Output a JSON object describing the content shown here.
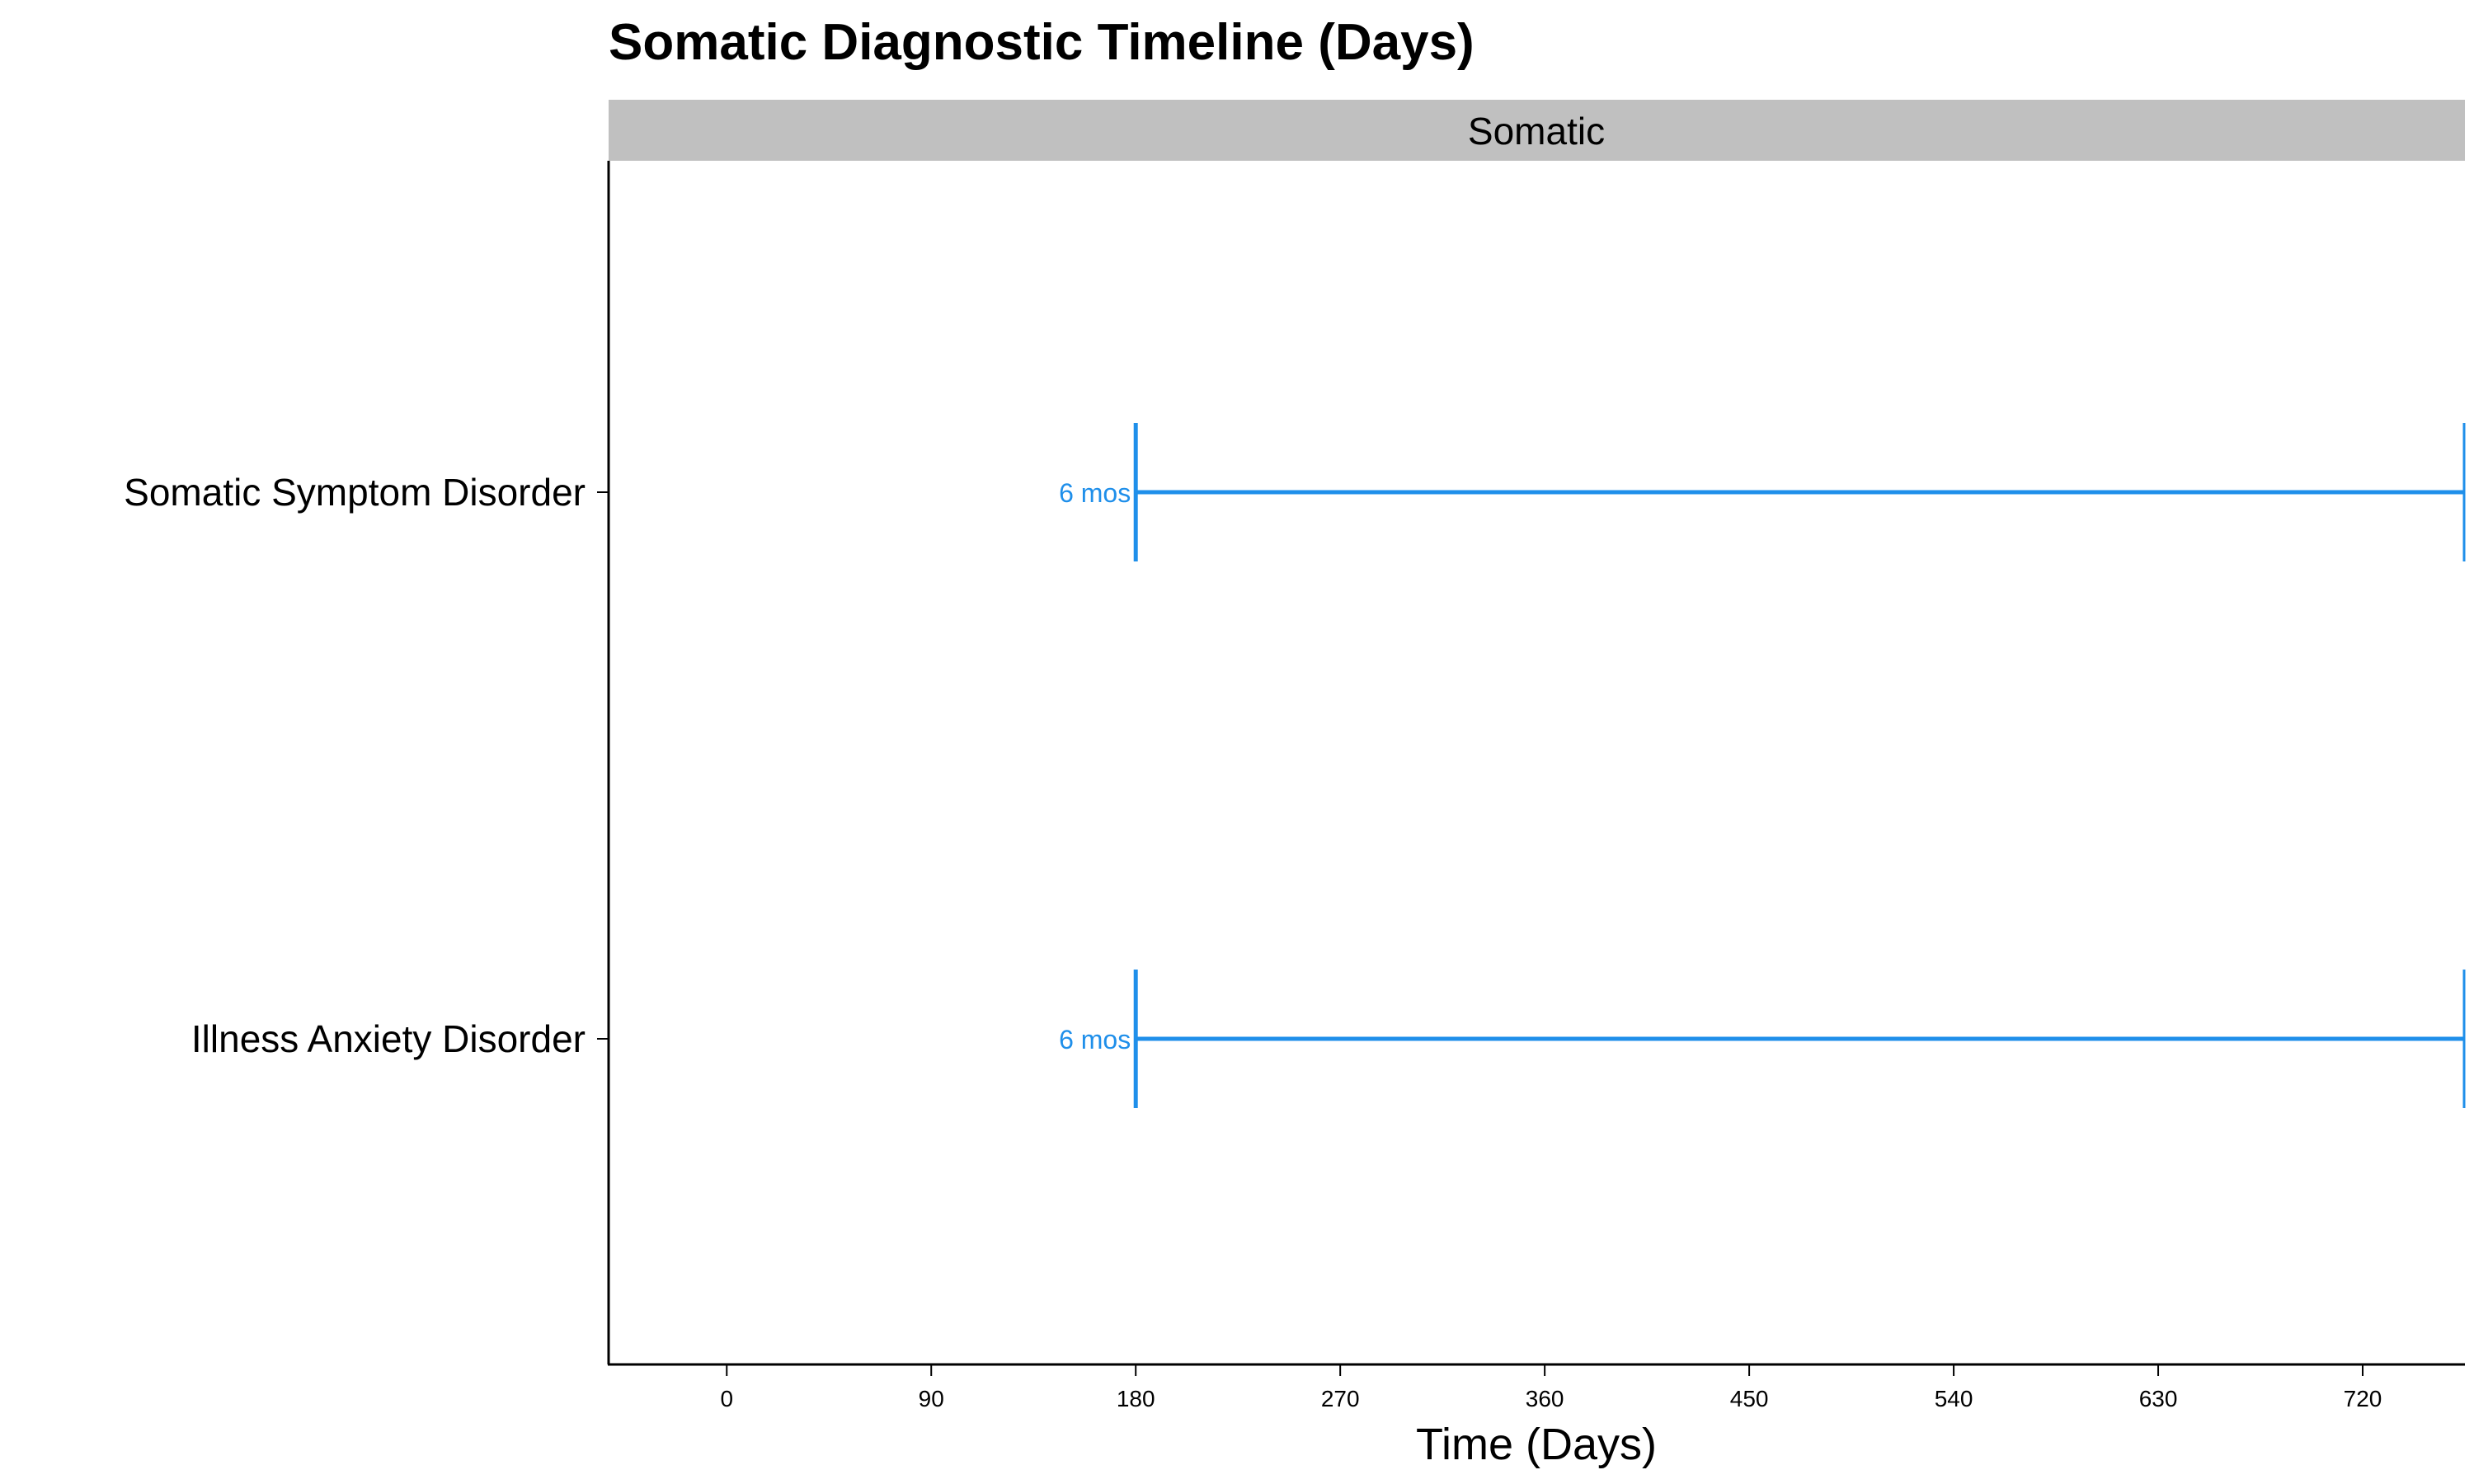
{
  "chart_data": {
    "type": "timeline",
    "title": "Somatic Diagnostic Timeline (Days)",
    "facet": "Somatic",
    "xlabel": "Time (Days)",
    "ylabel": "",
    "xlim": [
      -52,
      765
    ],
    "x_ticks": [
      0,
      90,
      180,
      270,
      360,
      450,
      540,
      630,
      720
    ],
    "grid": false,
    "legend": "none",
    "colors": {
      "series": "#1f8fea",
      "strip": "#c0c0c0",
      "axis": "#000000"
    },
    "categories": [
      "Somatic Symptom Disorder",
      "Illness Anxiety Disorder"
    ],
    "series": [
      {
        "category": "Somatic Symptom Disorder",
        "start": 180,
        "end": 765,
        "label": "6 mos"
      },
      {
        "category": "Illness Anxiety Disorder",
        "start": 180,
        "end": 765,
        "label": "6 mos"
      }
    ]
  }
}
